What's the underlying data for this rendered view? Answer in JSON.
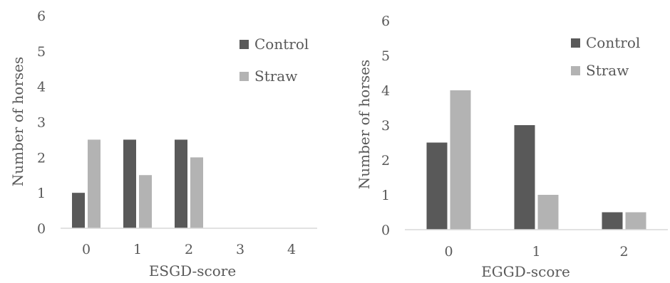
{
  "chart_data": [
    {
      "type": "bar",
      "categories": [
        "0",
        "1",
        "2",
        "3",
        "4"
      ],
      "series": [
        {
          "name": "Control",
          "values": [
            1,
            2.5,
            2.5,
            0,
            0
          ],
          "color": "#595959"
        },
        {
          "name": "Straw",
          "values": [
            2.5,
            1.5,
            2,
            0,
            0
          ],
          "color": "#b3b3b3"
        }
      ],
      "xlabel": "ESGD-score",
      "ylabel": "Number of horses",
      "ylim": [
        0,
        6
      ],
      "yticks": [
        "0",
        "1",
        "2",
        "3",
        "4",
        "5",
        "6"
      ],
      "grid": false,
      "legend": "top-right"
    },
    {
      "type": "bar",
      "categories": [
        "0",
        "1",
        "2"
      ],
      "series": [
        {
          "name": "Control",
          "values": [
            2.5,
            3,
            0.5
          ],
          "color": "#595959"
        },
        {
          "name": "Straw",
          "values": [
            4,
            1,
            0.5
          ],
          "color": "#b3b3b3"
        }
      ],
      "xlabel": "EGGD-score",
      "ylabel": "Number of horses",
      "ylim": [
        0,
        6
      ],
      "yticks": [
        "0",
        "1",
        "2",
        "3",
        "4",
        "5",
        "6"
      ],
      "grid": false,
      "legend": "top-right"
    }
  ]
}
